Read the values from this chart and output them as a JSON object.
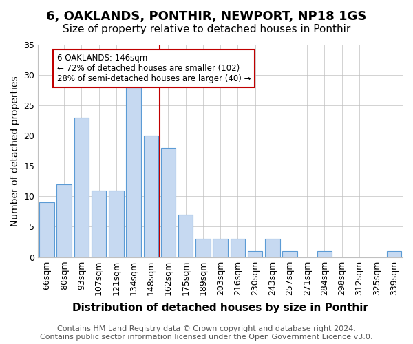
{
  "title": "6, OAKLANDS, PONTHIR, NEWPORT, NP18 1GS",
  "subtitle": "Size of property relative to detached houses in Ponthir",
  "xlabel": "Distribution of detached houses by size in Ponthir",
  "ylabel": "Number of detached properties",
  "categories": [
    "66sqm",
    "80sqm",
    "93sqm",
    "107sqm",
    "121sqm",
    "134sqm",
    "148sqm",
    "162sqm",
    "175sqm",
    "189sqm",
    "203sqm",
    "216sqm",
    "230sqm",
    "243sqm",
    "257sqm",
    "271sqm",
    "284sqm",
    "298sqm",
    "312sqm",
    "325sqm",
    "339sqm"
  ],
  "values": [
    9,
    12,
    23,
    11,
    11,
    28,
    20,
    18,
    7,
    3,
    3,
    3,
    1,
    3,
    1,
    0,
    1,
    0,
    0,
    0,
    1
  ],
  "bar_color": "#c6d9f1",
  "bar_edge_color": "#5b9bd5",
  "reference_line_x": 6.5,
  "reference_line_color": "#c00000",
  "annotation_text": "6 OAKLANDS: 146sqm\n← 72% of detached houses are smaller (102)\n28% of semi-detached houses are larger (40) →",
  "annotation_box_edge_color": "#c00000",
  "ylim": [
    0,
    35
  ],
  "yticks": [
    0,
    5,
    10,
    15,
    20,
    25,
    30,
    35
  ],
  "footer": "Contains HM Land Registry data © Crown copyright and database right 2024.\nContains public sector information licensed under the Open Government Licence v3.0.",
  "bg_color": "#ffffff",
  "grid_color": "#c0c0c0",
  "title_fontsize": 13,
  "subtitle_fontsize": 11,
  "xlabel_fontsize": 11,
  "ylabel_fontsize": 10,
  "tick_fontsize": 9,
  "footer_fontsize": 8
}
